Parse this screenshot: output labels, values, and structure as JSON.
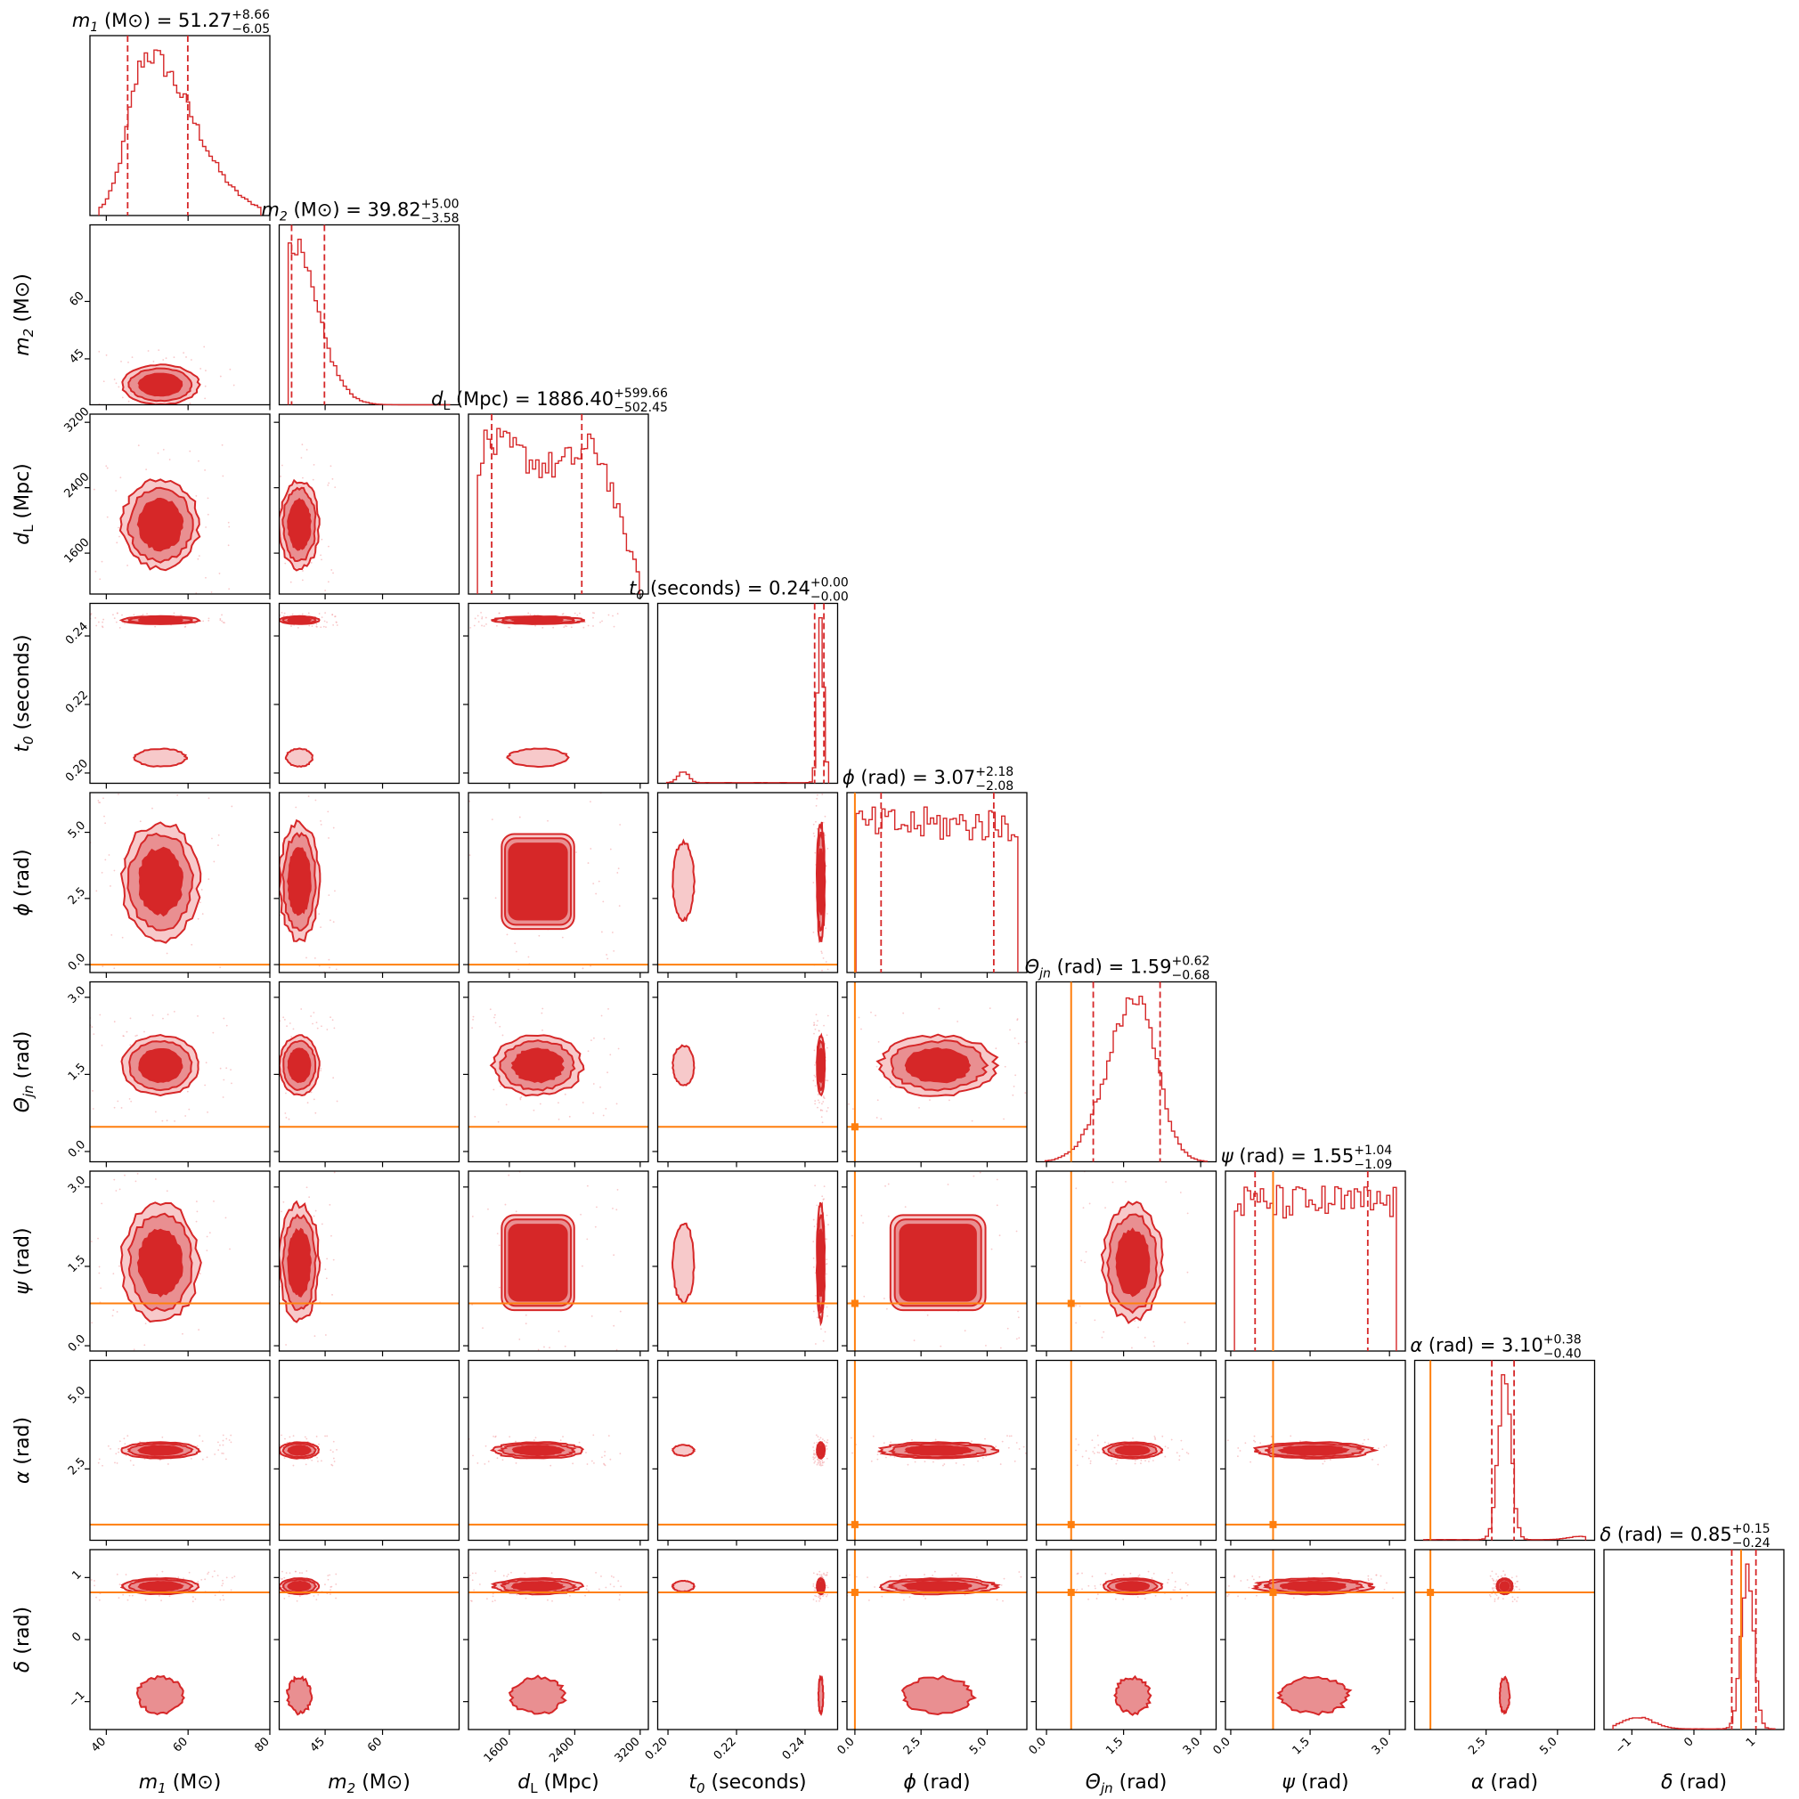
{
  "chart_data": {
    "type": "corner",
    "colors": {
      "posterior": "#d62728",
      "posterior_fill_outer": "#f7c9ca",
      "posterior_fill_mid": "#e98f91",
      "posterior_fill_inner": "#d62728",
      "scatter": "#f4a3a6",
      "truth": "#ff7f0e"
    },
    "parameters": [
      {
        "key": "m1",
        "axis_label": {
          "sym": "m",
          "sub": "1",
          "unit": "(M⊙)"
        },
        "title": {
          "sym": "m",
          "sub": "1",
          "unit": "(M⊙)",
          "value": "51.27",
          "upper": "+8.66",
          "lower": "−6.05"
        },
        "range": [
          36,
          80
        ],
        "ticks": [
          40,
          60,
          80
        ],
        "tick_labels": [
          "40",
          "60",
          "80"
        ],
        "median": 51.27,
        "quantiles": [
          45.22,
          59.93
        ],
        "truth": null,
        "hist_shape": {
          "type": "peak",
          "center": 50,
          "w1": 4.5,
          "w2": 11,
          "tail": 0.01
        }
      },
      {
        "key": "m2",
        "axis_label": {
          "sym": "m",
          "sub": "2",
          "unit": "(M⊙)"
        },
        "title": {
          "sym": "m",
          "sub": "2",
          "unit": "(M⊙)",
          "value": "39.82",
          "upper": "+5.00",
          "lower": "−3.58"
        },
        "range": [
          33,
          80
        ],
        "ticks": [
          45,
          60
        ],
        "tick_labels": [
          "45",
          "60"
        ],
        "median": 39.82,
        "quantiles": [
          36.24,
          44.82
        ],
        "truth": null,
        "hist_shape": {
          "type": "peak",
          "center": 35.5,
          "w1": 1.5,
          "w2": 7,
          "tail": 0.0
        }
      },
      {
        "key": "dL",
        "axis_label": {
          "sym": "d",
          "sub": "L",
          "unit": "(Mpc)"
        },
        "title": {
          "sym": "d",
          "sub": "L",
          "unit": "(Mpc)",
          "value": "1886.40",
          "upper": "+599.66",
          "lower": "−502.45"
        },
        "range": [
          1100,
          3300
        ],
        "ticks": [
          1600,
          2400,
          3200
        ],
        "tick_labels": [
          "1600",
          "2400",
          "3200"
        ],
        "median": 1886.4,
        "quantiles": [
          1383.95,
          2486.06
        ],
        "truth": null,
        "hist_shape": {
          "type": "plateau",
          "lo": 1300,
          "hi": 2600,
          "rise": 150,
          "fall": 300,
          "dip": 0.15
        }
      },
      {
        "key": "t0",
        "axis_label": {
          "sym": "t",
          "sub": "0",
          "unit": "(seconds)"
        },
        "title": {
          "sym": "t",
          "sub": "0",
          "unit": "(seconds)",
          "value": "0.24",
          "upper": "+0.00",
          "lower": "−0.00"
        },
        "range": [
          0.197,
          0.2495
        ],
        "ticks": [
          0.2,
          0.22,
          0.24
        ],
        "tick_labels": [
          "0.20",
          "0.22",
          "0.24"
        ],
        "median": 0.2445,
        "quantiles": [
          0.2428,
          0.2455
        ],
        "truth": null,
        "hist_shape": {
          "type": "spike",
          "center": 0.2446,
          "w": 0.0009,
          "bump": 0.2045,
          "bumpw": 0.0015,
          "bumph": 0.07
        }
      },
      {
        "key": "phi",
        "axis_label": {
          "sym": "ϕ",
          "sub": "",
          "unit": "(rad)"
        },
        "title": {
          "sym": "ϕ",
          "sub": "",
          "unit": "(rad)",
          "value": "3.07",
          "upper": "+2.18",
          "lower": "−2.08"
        },
        "range": [
          -0.3,
          6.5
        ],
        "ticks": [
          0.0,
          2.5,
          5.0
        ],
        "tick_labels": [
          "0.0",
          "2.5",
          "5.0"
        ],
        "median": 3.07,
        "quantiles": [
          0.99,
          5.25
        ],
        "truth": 0.0,
        "hist_shape": {
          "type": "flat",
          "lo": 0.0,
          "hi": 6.28
        }
      },
      {
        "key": "theta",
        "axis_label": {
          "sym": "Θ",
          "sub": "jn",
          "unit": "(rad)"
        },
        "title": {
          "sym": "Θ",
          "sub": "jn",
          "unit": "(rad)",
          "value": "1.59",
          "upper": "+0.62",
          "lower": "−0.68"
        },
        "range": [
          -0.2,
          3.3
        ],
        "ticks": [
          0.0,
          1.5,
          3.0
        ],
        "tick_labels": [
          "0.0",
          "1.5",
          "3.0"
        ],
        "median": 1.59,
        "quantiles": [
          0.91,
          2.21
        ],
        "truth": 0.48,
        "hist_shape": {
          "type": "peak",
          "center": 1.75,
          "w1": 0.55,
          "w2": 0.4,
          "tail": 0.0
        }
      },
      {
        "key": "psi",
        "axis_label": {
          "sym": "ψ",
          "sub": "",
          "unit": "(rad)"
        },
        "title": {
          "sym": "ψ",
          "sub": "",
          "unit": "(rad)",
          "value": "1.55",
          "upper": "+1.04",
          "lower": "−1.09"
        },
        "range": [
          -0.1,
          3.3
        ],
        "ticks": [
          0.0,
          1.5,
          3.0
        ],
        "tick_labels": [
          "0.0",
          "1.5",
          "3.0"
        ],
        "median": 1.55,
        "quantiles": [
          0.46,
          2.59
        ],
        "truth": 0.8,
        "hist_shape": {
          "type": "flat",
          "lo": 0.0,
          "hi": 3.14
        }
      },
      {
        "key": "alpha",
        "axis_label": {
          "sym": "α",
          "sub": "",
          "unit": "(rad)"
        },
        "title": {
          "sym": "α",
          "sub": "",
          "unit": "(rad)",
          "value": "3.10",
          "upper": "+0.38",
          "lower": "−0.40"
        },
        "range": [
          0.0,
          6.3
        ],
        "ticks": [
          2.5,
          5.0
        ],
        "tick_labels": [
          "2.5",
          "5.0"
        ],
        "median": 3.1,
        "quantiles": [
          2.7,
          3.48
        ],
        "truth": 0.55,
        "hist_shape": {
          "type": "spike",
          "center": 3.15,
          "w": 0.22,
          "bump": 5.8,
          "bumpw": 0.4,
          "bumph": 0.02
        }
      },
      {
        "key": "delta",
        "axis_label": {
          "sym": "δ",
          "sub": "",
          "unit": "(rad)"
        },
        "title": {
          "sym": "δ",
          "sub": "",
          "unit": "(rad)",
          "value": "0.85",
          "upper": "+0.15",
          "lower": "−0.24"
        },
        "range": [
          -1.45,
          1.45
        ],
        "ticks": [
          -1,
          0,
          1
        ],
        "tick_labels": [
          "−1",
          "0",
          "1"
        ],
        "median": 0.85,
        "quantiles": [
          0.61,
          1.0
        ],
        "truth": 0.76,
        "hist_shape": {
          "type": "spike",
          "center": 0.86,
          "w": 0.1,
          "bump": -0.9,
          "bumpw": 0.25,
          "bumph": 0.07
        }
      }
    ]
  }
}
